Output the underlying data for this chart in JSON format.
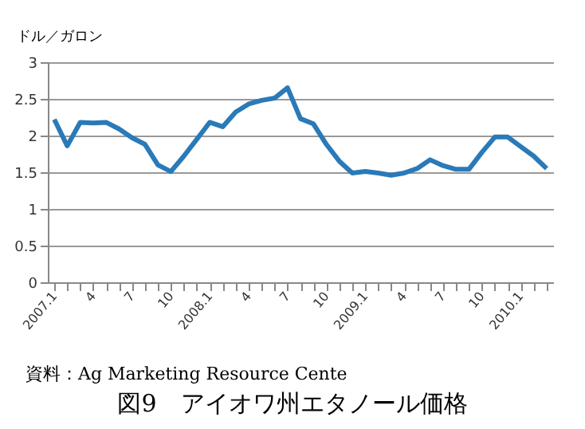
{
  "chart_data": {
    "type": "line",
    "title": "図9　アイオワ州エタノール価格",
    "ylabel": "ドル／ガロン",
    "annotations": [
      "資料：Ag Marketing Resource Cente"
    ],
    "categories": [
      "2007.1",
      null,
      null,
      "4",
      null,
      null,
      "7",
      null,
      null,
      "10",
      null,
      null,
      "2008.1",
      null,
      null,
      "4",
      null,
      null,
      "7",
      null,
      null,
      "10",
      null,
      null,
      "2009.1",
      null,
      null,
      "4",
      null,
      null,
      "7",
      null,
      null,
      "10",
      null,
      null,
      "2010.1",
      null,
      null
    ],
    "series": [
      {
        "color": "#2a7ab8",
        "values": [
          2.22,
          1.86,
          2.18,
          2.17,
          2.18,
          2.09,
          1.97,
          1.88,
          1.6,
          1.51,
          1.72,
          1.95,
          2.18,
          2.12,
          2.32,
          2.43,
          2.48,
          2.51,
          2.65,
          2.23,
          2.16,
          1.88,
          1.65,
          1.49,
          1.51,
          1.49,
          1.46,
          1.49,
          1.55,
          1.67,
          1.59,
          1.54,
          1.54,
          1.77,
          1.98,
          1.98,
          1.85,
          1.72,
          1.55
        ]
      }
    ],
    "ylim": [
      0,
      3
    ],
    "yticks": [
      0,
      0.5,
      1,
      1.5,
      2,
      2.5,
      3
    ],
    "grid": "y",
    "marker": "none",
    "line_style": "solid"
  }
}
